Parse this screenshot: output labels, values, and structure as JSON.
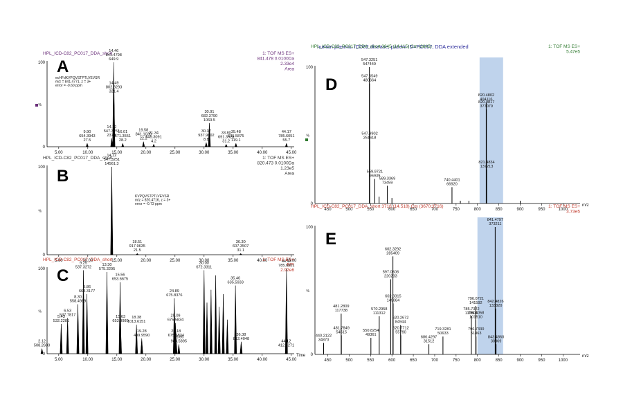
{
  "colors": {
    "purple": "#6a2f7a",
    "green": "#2f7a2f",
    "red": "#c0392b",
    "blue": "#2a2a9a",
    "highlight": "#aac4e6"
  },
  "caption": "human plasma, ICD62 disease, patient ID=PC017; DDA extended",
  "chart_data": [
    {
      "id": "A",
      "type": "line",
      "panel_label": "A",
      "header_left": "HPL_ICD-C82_PC017_DDA_short",
      "header_right": [
        "1: TOF MS ES+",
        "841.478 0.0100Da",
        "2.33e4",
        "Area"
      ],
      "inset": [
        "ecHFdKVPQVSTPTLVEVSR",
        "m/z = 841.4771, z = 3+",
        "error = -0.60 ppm"
      ],
      "ylabel": "%",
      "xlabel": "",
      "xlim": [
        3,
        45.5
      ],
      "ylim": [
        0,
        100
      ],
      "xticks": [
        5,
        10,
        15,
        20,
        25,
        30,
        35,
        40,
        45
      ],
      "xtick_labels": [
        "5.00",
        "10.00",
        "15.00",
        "20.00",
        "25.00",
        "30.00",
        "35.00",
        "40.00",
        "45.00"
      ],
      "ytick_labels": [
        "0",
        "100"
      ],
      "peaks": [
        [
          9.9,
          4
        ],
        [
          14.12,
          10
        ],
        [
          14.46,
          100
        ],
        [
          14.49,
          62
        ],
        [
          16.01,
          4
        ],
        [
          19.58,
          6
        ],
        [
          21.34,
          3
        ],
        [
          30.37,
          5
        ],
        [
          30.91,
          28
        ],
        [
          33.8,
          3
        ],
        [
          35.48,
          4
        ],
        [
          44.17,
          4
        ]
      ],
      "annotations": [
        {
          "x": 14.46,
          "y": 100,
          "text": [
            "14.46",
            "841.4798",
            "649.9"
          ]
        },
        {
          "x": 14.49,
          "y": 62,
          "text": [
            "14.49",
            "802.3293",
            "321.4"
          ]
        },
        {
          "x": 14.12,
          "y": 10,
          "text": [
            "14.12",
            "547.3251",
            "237.7"
          ]
        },
        {
          "x": 9.9,
          "y": 4,
          "text": [
            "9.90",
            "654.3943",
            "27.5"
          ]
        },
        {
          "x": 16.01,
          "y": 4,
          "text": [
            "16.01",
            "571.3551",
            "28.2"
          ]
        },
        {
          "x": 19.58,
          "y": 6,
          "text": [
            "19.58",
            "841.1039",
            "22.2"
          ]
        },
        {
          "x": 21.34,
          "y": 3,
          "text": [
            "21.34",
            "649.3091",
            "4.2"
          ]
        },
        {
          "x": 30.91,
          "y": 28,
          "text": [
            "30.91",
            "682.3790",
            "1069.5"
          ]
        },
        {
          "x": 30.37,
          "y": 5,
          "text": [
            "30.37",
            "937.9802",
            "8.8"
          ]
        },
        {
          "x": 33.8,
          "y": 3,
          "text": [
            "33.80",
            "691.3528",
            "31.2"
          ]
        },
        {
          "x": 35.48,
          "y": 4,
          "text": [
            "35.48",
            "635.5875",
            "119.1"
          ]
        },
        {
          "x": 44.17,
          "y": 4,
          "text": [
            "44.17",
            "785.6051",
            "55.7"
          ]
        }
      ]
    },
    {
      "id": "B",
      "type": "line",
      "panel_label": "B",
      "header_left": "HPL_ICD-C82_PC017_DDA_short",
      "header_right": [
        "1: TOF MS ES+",
        "820.473 0.0100Da",
        "1.23e5",
        "Area"
      ],
      "inset": [
        "KVPQVSTPTLVEVSR",
        "m/z = 820.4716, z = 3+",
        "error = -0.73 ppm"
      ],
      "ylabel": "%",
      "xlabel": "",
      "xlim": [
        3,
        45.5
      ],
      "ylim": [
        0,
        100
      ],
      "xticks": [
        5,
        10,
        15,
        20,
        25,
        30,
        35,
        40,
        45
      ],
      "xtick_labels": [
        "5.00",
        "10.00",
        "15.00",
        "20.00",
        "25.00",
        "30.00",
        "35.00",
        "40.00",
        "45.00"
      ],
      "ytick_labels": [
        "0",
        "100"
      ],
      "peaks": [
        [
          14.12,
          100
        ],
        [
          18.51,
          1.5
        ],
        [
          36.3,
          1.5
        ]
      ],
      "annotations": [
        {
          "x": 14.12,
          "y": 100,
          "text": [
            "14.12",
            "547.3251",
            "14561.3"
          ]
        },
        {
          "x": 18.51,
          "y": 1.5,
          "text": [
            "18.51",
            "917.9635",
            "21.5"
          ]
        },
        {
          "x": 36.3,
          "y": 1.5,
          "text": [
            "36.30",
            "607.3507",
            "31.1"
          ]
        }
      ]
    },
    {
      "id": "C",
      "type": "line",
      "panel_label": "C",
      "header_left": "HPL_ICD-C82_PC017_DDA_short",
      "header_right": [
        "1: TOF MS ES+",
        "BPI",
        "2.92e6"
      ],
      "ylabel": "%",
      "xlabel": "Time",
      "xlim": [
        3,
        45.5
      ],
      "ylim": [
        0,
        100
      ],
      "xticks": [
        5,
        10,
        15,
        20,
        25,
        30,
        35,
        40,
        45
      ],
      "xtick_labels": [
        "5.00",
        "10.00",
        "15.00",
        "20.00",
        "25.00",
        "30.00",
        "35.00",
        "40.00",
        "45.00"
      ],
      "ytick_labels": [
        "0",
        "100"
      ],
      "peaks": [
        [
          2.12,
          6
        ],
        [
          5.43,
          35
        ],
        [
          6.53,
          42
        ],
        [
          8.3,
          58
        ],
        [
          9.25,
          98
        ],
        [
          9.86,
          70
        ],
        [
          13.3,
          96
        ],
        [
          15.56,
          84
        ],
        [
          15.63,
          35
        ],
        [
          18.38,
          34
        ],
        [
          19.28,
          18
        ],
        [
          24.89,
          65
        ],
        [
          25.09,
          36
        ],
        [
          25.18,
          18
        ],
        [
          25.66,
          11
        ],
        [
          30,
          98
        ],
        [
          30.5,
          60
        ],
        [
          31.2,
          75
        ],
        [
          32,
          92
        ],
        [
          32.6,
          55
        ],
        [
          33.3,
          70
        ],
        [
          34,
          40
        ],
        [
          35.4,
          80
        ],
        [
          36.38,
          14
        ],
        [
          44.12,
          6
        ],
        [
          44.17,
          100
        ]
      ],
      "annotations": [
        {
          "x": 2.12,
          "y": 6,
          "text": [
            "2.12",
            "508.2600"
          ]
        },
        {
          "x": 5.43,
          "y": 35,
          "text": [
            "5.43",
            "532.2281"
          ]
        },
        {
          "x": 6.53,
          "y": 42,
          "text": [
            "6.53",
            "537.7817"
          ]
        },
        {
          "x": 8.3,
          "y": 58,
          "text": [
            "8.30",
            "558.4989"
          ]
        },
        {
          "x": 9.25,
          "y": 98,
          "text": [
            "9.25",
            "537.3272"
          ]
        },
        {
          "x": 9.86,
          "y": 70,
          "text": [
            "9.86",
            "663.3177"
          ]
        },
        {
          "x": 13.3,
          "y": 96,
          "text": [
            "13.30",
            "575.3295"
          ]
        },
        {
          "x": 15.56,
          "y": 84,
          "text": [
            "15.56",
            "653.6675"
          ]
        },
        {
          "x": 15.63,
          "y": 35,
          "text": [
            "15.63",
            "653.9989"
          ]
        },
        {
          "x": 18.38,
          "y": 34,
          "text": [
            "18.38",
            "1013.6151"
          ]
        },
        {
          "x": 19.28,
          "y": 18,
          "text": [
            "19.28",
            "499.9590"
          ]
        },
        {
          "x": 24.89,
          "y": 65,
          "text": [
            "24.89",
            "675.8376"
          ]
        },
        {
          "x": 25.09,
          "y": 36,
          "text": [
            "25.09",
            "675.5834"
          ]
        },
        {
          "x": 25.18,
          "y": 18,
          "text": [
            "25.18",
            "675.5834"
          ]
        },
        {
          "x": 25.66,
          "y": 11,
          "text": [
            "25.66",
            "983.5895"
          ]
        },
        {
          "x": 30,
          "y": 98,
          "text": [
            "30.00",
            "672.3311"
          ]
        },
        {
          "x": 35.4,
          "y": 80,
          "text": [
            "35.40",
            "635.5933"
          ]
        },
        {
          "x": 36.38,
          "y": 14,
          "text": [
            "36.38",
            "812.4048"
          ]
        },
        {
          "x": 44.17,
          "y": 100,
          "text": [
            "44.17",
            "785.6051"
          ]
        },
        {
          "x": 44.12,
          "y": 6,
          "text": [
            "44.12",
            "412.3271"
          ]
        }
      ]
    },
    {
      "id": "D",
      "type": "bar",
      "panel_label": "D",
      "header_left": "HPL_ICD-C82_PC017_DDA_short 3645 (14.115) Cm (3645)",
      "header_right": [
        "1: TOF MS ES+",
        "5.47e5"
      ],
      "ylabel": "%",
      "xlabel": "m/z",
      "xlim": [
        420,
        1040
      ],
      "ylim": [
        0,
        100
      ],
      "highlight": [
        805,
        860
      ],
      "xticks": [
        450,
        500,
        550,
        600,
        650,
        700,
        750,
        800,
        850,
        900,
        950,
        1000
      ],
      "xtick_labels": [
        "450",
        "500",
        "550",
        "600",
        "650",
        "700",
        "750",
        "800",
        "850",
        "900",
        "950",
        "1000"
      ],
      "ytick_labels": [
        "0",
        "100"
      ],
      "peaks": [
        [
          547.3251,
          100
        ],
        [
          547.6549,
          88
        ],
        [
          547.9902,
          46
        ],
        [
          559.9721,
          18
        ],
        [
          570,
          5
        ],
        [
          589.3369,
          13
        ],
        [
          600,
          4
        ],
        [
          740.4401,
          12
        ],
        [
          760,
          2
        ],
        [
          820.4802,
          74
        ],
        [
          820.9817,
          69
        ],
        [
          821.4834,
          25
        ],
        [
          780,
          2
        ],
        [
          900,
          2
        ]
      ],
      "annotations": [
        {
          "x": 547.3251,
          "y": 100,
          "text": [
            "547.3251",
            "547449"
          ]
        },
        {
          "x": 547.6549,
          "y": 88,
          "text": [
            "547.6549",
            "480664"
          ]
        },
        {
          "x": 547.9902,
          "y": 46,
          "text": [
            "547.9902",
            "251618"
          ]
        },
        {
          "x": 559.9721,
          "y": 18,
          "text": [
            "559.9721",
            "96939"
          ]
        },
        {
          "x": 589.3369,
          "y": 13,
          "text": [
            "589.3369",
            "73459"
          ]
        },
        {
          "x": 740.4401,
          "y": 12,
          "text": [
            "740.4401",
            "66920"
          ]
        },
        {
          "x": 820.4802,
          "y": 74,
          "text": [
            "820.4802",
            "404116"
          ]
        },
        {
          "x": 820.9817,
          "y": 69,
          "text": [
            "820.9817",
            "377079"
          ]
        },
        {
          "x": 821.4834,
          "y": 25,
          "text": [
            "821.4834",
            "137213"
          ]
        }
      ]
    },
    {
      "id": "E",
      "type": "bar",
      "panel_label": "E",
      "header_left": "HPL_ICD-C82_PC017_DDA_short 3716 (14.518) Cm (3670:3716)",
      "header_right": [
        "1: TOF MS ES+",
        "3.73e5"
      ],
      "ylabel": "%",
      "xlabel": "m/z",
      "xlim": [
        420,
        1040
      ],
      "ylim": [
        0,
        100
      ],
      "highlight": [
        800,
        860
      ],
      "xticks": [
        450,
        500,
        550,
        600,
        650,
        700,
        750,
        800,
        850,
        900,
        950,
        1000
      ],
      "xtick_labels": [
        "450",
        "500",
        "550",
        "600",
        "650",
        "700",
        "750",
        "800",
        "850",
        "900",
        "950",
        "1000"
      ],
      "ytick_labels": [
        "0",
        "100"
      ],
      "peaks": [
        [
          440.2122,
          9
        ],
        [
          481.2809,
          32
        ],
        [
          481.7849,
          15
        ],
        [
          550.8254,
          13
        ],
        [
          570.2958,
          30
        ],
        [
          597.0508,
          59
        ],
        [
          602.3292,
          77
        ],
        [
          602.8315,
          40
        ],
        [
          620.2672,
          23
        ],
        [
          620.7712,
          15
        ],
        [
          686.4297,
          8
        ],
        [
          719.3281,
          14
        ],
        [
          785.7322,
          30
        ],
        [
          796.0721,
          38
        ],
        [
          796.4058,
          27
        ],
        [
          796.733,
          14
        ],
        [
          841.4797,
          100
        ],
        [
          842.4826,
          36
        ],
        [
          843.486,
          8
        ]
      ],
      "annotations": [
        {
          "x": 440.2122,
          "y": 9,
          "text": [
            "440.2122",
            "34870"
          ]
        },
        {
          "x": 481.2809,
          "y": 32,
          "text": [
            "481.2809",
            "117738"
          ]
        },
        {
          "x": 481.7849,
          "y": 15,
          "text": [
            "481.7849",
            "54515"
          ]
        },
        {
          "x": 550.8254,
          "y": 13,
          "text": [
            "550.8254",
            "49361"
          ]
        },
        {
          "x": 570.2958,
          "y": 30,
          "text": [
            "570.2958",
            "111312"
          ]
        },
        {
          "x": 597.0508,
          "y": 59,
          "text": [
            "597.0508",
            "220233"
          ]
        },
        {
          "x": 602.3292,
          "y": 77,
          "text": [
            "602.3292",
            "285409"
          ]
        },
        {
          "x": 602.8315,
          "y": 40,
          "text": [
            "602.8315",
            "149084"
          ]
        },
        {
          "x": 620.2672,
          "y": 23,
          "text": [
            "620.2672",
            "84944"
          ]
        },
        {
          "x": 620.7712,
          "y": 15,
          "text": [
            "620.7712",
            "55790"
          ]
        },
        {
          "x": 686.4297,
          "y": 8,
          "text": [
            "686.4297",
            "31512"
          ]
        },
        {
          "x": 719.3281,
          "y": 14,
          "text": [
            "719.3281",
            "50633"
          ]
        },
        {
          "x": 785.7322,
          "y": 30,
          "text": [
            "785.7322",
            "110503"
          ]
        },
        {
          "x": 796.0721,
          "y": 38,
          "text": [
            "796.0721",
            "141592"
          ]
        },
        {
          "x": 796.4058,
          "y": 27,
          "text": [
            "796.4058",
            "101510"
          ]
        },
        {
          "x": 796.733,
          "y": 14,
          "text": [
            "796.7330",
            "51863"
          ]
        },
        {
          "x": 841.4797,
          "y": 100,
          "text": [
            "841.4797",
            "373211"
          ]
        },
        {
          "x": 842.4826,
          "y": 36,
          "text": [
            "842.4826",
            "133820"
          ]
        },
        {
          "x": 843.486,
          "y": 8,
          "text": [
            "843.4860",
            "30369"
          ]
        }
      ]
    }
  ]
}
